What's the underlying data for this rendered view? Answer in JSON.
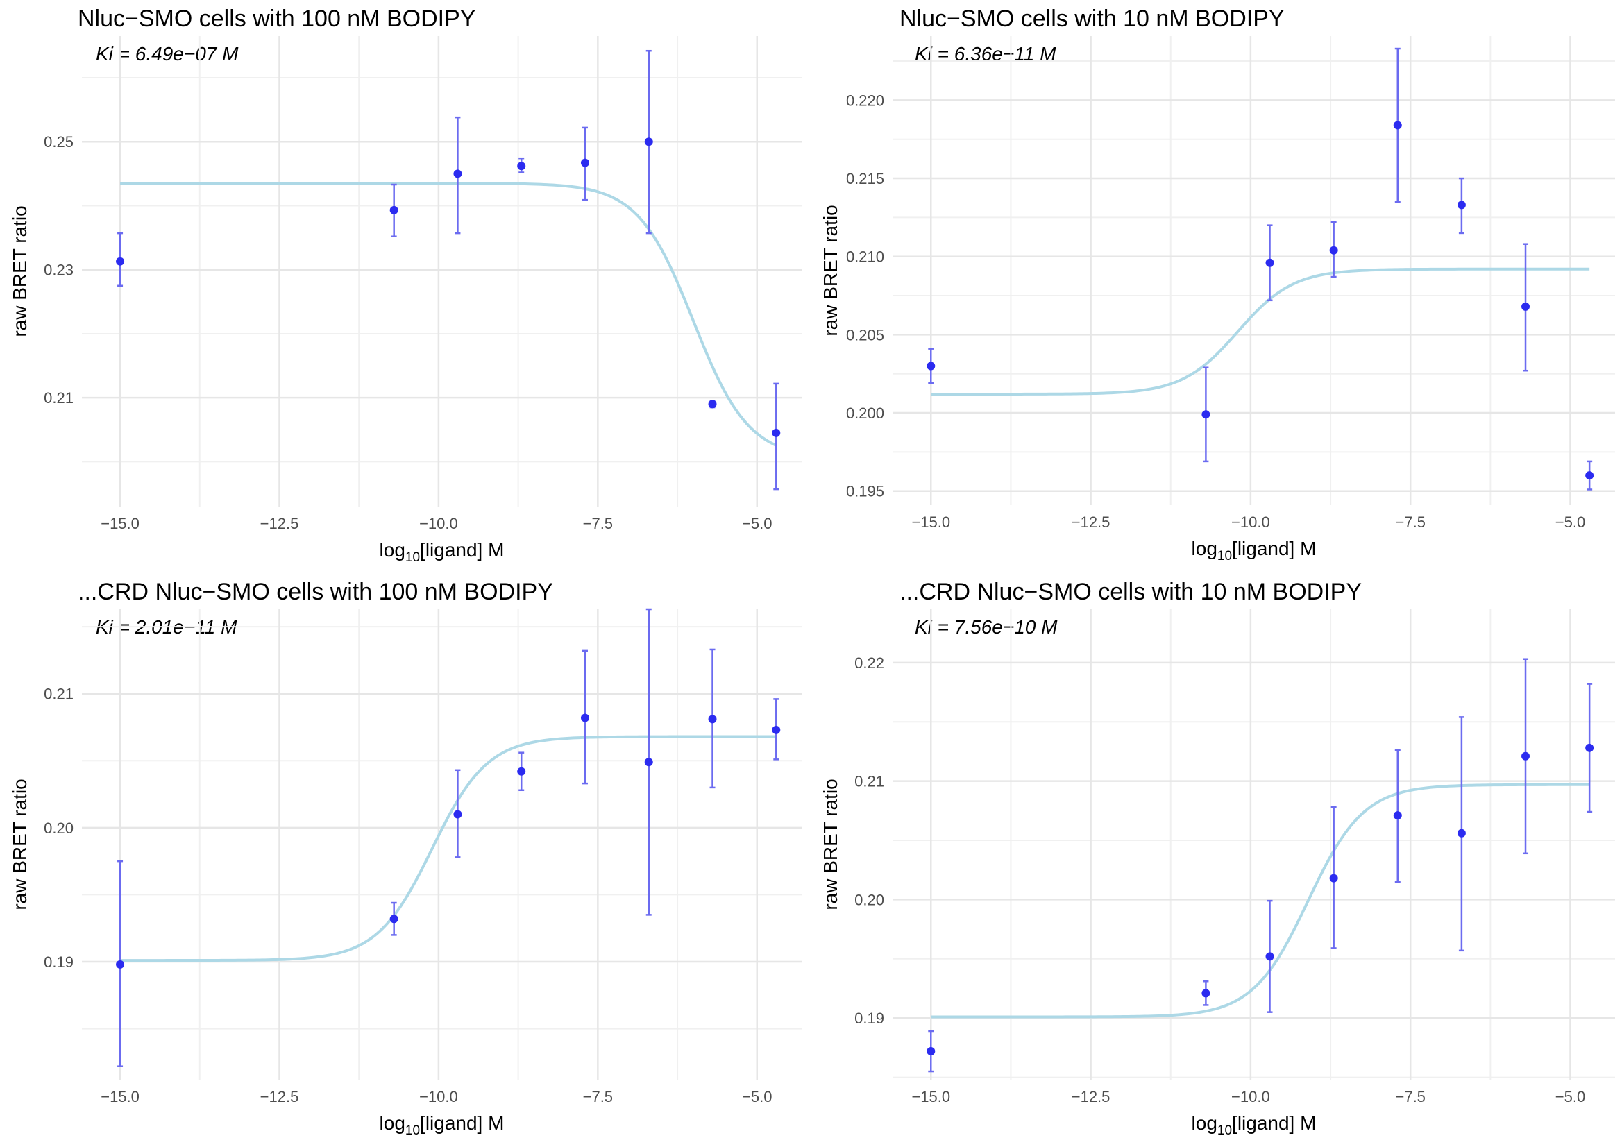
{
  "chart_data": [
    {
      "type": "scatter",
      "title": "Nluc−SMO cells with 100 nM BODIPY",
      "annotation": "Ki = 6.49e−07 M",
      "xlabel_prefix": "log",
      "xlabel_sub": "10",
      "xlabel_suffix": "[ligand] M",
      "ylabel": "raw BRET ratio",
      "xlim": [
        -15.6,
        -4.3
      ],
      "ylim": [
        0.193,
        0.2665
      ],
      "xticks": [
        -15.0,
        -12.5,
        -10.0,
        -7.5,
        -5.0
      ],
      "xtick_labels": [
        "−15.0",
        "−12.5",
        "−10.0",
        "−7.5",
        "−5.0"
      ],
      "yticks": [
        0.21,
        0.23,
        0.25
      ],
      "ytick_labels": [
        "0.21",
        "0.23",
        "0.25"
      ],
      "grid": true,
      "series": [
        {
          "x": [
            -15.0,
            -10.7,
            -9.7,
            -8.7,
            -7.7,
            -6.7,
            -5.7,
            -4.7
          ],
          "y": [
            0.2313,
            0.2393,
            0.245,
            0.2462,
            0.2467,
            0.25,
            0.209,
            0.2045
          ],
          "err_low": [
            0.2275,
            0.2352,
            0.2357,
            0.2452,
            0.2409,
            0.2357,
            0.2085,
            0.1957
          ],
          "err_high": [
            0.2357,
            0.2433,
            0.2538,
            0.2474,
            0.2522,
            0.2642,
            0.2095,
            0.2122
          ],
          "color": "#2b2bf0"
        }
      ],
      "fit": {
        "bottom": 0.2005,
        "top": 0.2435,
        "logEC50": -6.0,
        "hill": -1.0,
        "x_range": [
          -15.0,
          -4.7
        ],
        "color": "#add8e6"
      }
    },
    {
      "type": "scatter",
      "title": "Nluc−SMO cells with 10 nM BODIPY",
      "annotation": "Ki = 6.36e−11 M",
      "xlabel_prefix": "log",
      "xlabel_sub": "10",
      "xlabel_suffix": "[ligand] M",
      "ylabel": "raw BRET ratio",
      "xlim": [
        -15.6,
        -4.3
      ],
      "ylim": [
        0.1941,
        0.2241
      ],
      "xticks": [
        -15.0,
        -12.5,
        -10.0,
        -7.5,
        -5.0
      ],
      "xtick_labels": [
        "−15.0",
        "−12.5",
        "−10.0",
        "−7.5",
        "−5.0"
      ],
      "yticks": [
        0.195,
        0.2,
        0.205,
        0.21,
        0.215,
        0.22
      ],
      "ytick_labels": [
        "0.195",
        "0.200",
        "0.205",
        "0.210",
        "0.215",
        "0.220"
      ],
      "grid": true,
      "series": [
        {
          "x": [
            -15.0,
            -10.7,
            -9.7,
            -8.7,
            -7.7,
            -6.7,
            -5.7,
            -4.7
          ],
          "y": [
            0.203,
            0.1999,
            0.2096,
            0.2104,
            0.2184,
            0.2133,
            0.2068,
            0.196
          ],
          "err_low": [
            0.2019,
            0.1969,
            0.2072,
            0.2087,
            0.2135,
            0.2115,
            0.2027,
            0.1951
          ],
          "err_high": [
            0.2041,
            0.2029,
            0.212,
            0.2122,
            0.2233,
            0.215,
            0.2108,
            0.1969
          ],
          "color": "#2b2bf0"
        }
      ],
      "fit": {
        "bottom": 0.2012,
        "top": 0.2092,
        "logEC50": -10.2,
        "hill": 1.0,
        "x_range": [
          -15.0,
          -4.7
        ],
        "color": "#add8e6"
      }
    },
    {
      "type": "scatter",
      "title": "...CRD Nluc−SMO cells with 100 nM BODIPY",
      "annotation": "Ki = 2.01e−11 M",
      "xlabel_prefix": "log",
      "xlabel_sub": "10",
      "xlabel_suffix": "[ligand] M",
      "ylabel": "raw BRET ratio",
      "xlim": [
        -15.6,
        -4.3
      ],
      "ylim": [
        0.1812,
        0.2163
      ],
      "xticks": [
        -15.0,
        -12.5,
        -10.0,
        -7.5,
        -5.0
      ],
      "xtick_labels": [
        "−15.0",
        "−12.5",
        "−10.0",
        "−7.5",
        "−5.0"
      ],
      "yticks": [
        0.19,
        0.2,
        0.21
      ],
      "ytick_labels": [
        "0.19",
        "0.20",
        "0.21"
      ],
      "grid": true,
      "series": [
        {
          "x": [
            -15.0,
            -10.7,
            -9.7,
            -8.7,
            -7.7,
            -6.7,
            -5.7,
            -4.7
          ],
          "y": [
            0.1898,
            0.1932,
            0.201,
            0.2042,
            0.2082,
            0.2049,
            0.2081,
            0.2073
          ],
          "err_low": [
            0.1822,
            0.192,
            0.1978,
            0.2028,
            0.2033,
            0.1935,
            0.203,
            0.2051
          ],
          "err_high": [
            0.1975,
            0.1944,
            0.2043,
            0.2056,
            0.2132,
            0.2163,
            0.2133,
            0.2096
          ],
          "color": "#2b2bf0"
        }
      ],
      "fit": {
        "bottom": 0.1901,
        "top": 0.2068,
        "logEC50": -10.1,
        "hill": 1.0,
        "x_range": [
          -15.0,
          -4.7
        ],
        "color": "#add8e6"
      }
    },
    {
      "type": "scatter",
      "title": "...CRD Nluc−SMO cells with 10 nM BODIPY",
      "annotation": "Ki = 7.56e−10 M",
      "xlabel_prefix": "log",
      "xlabel_sub": "10",
      "xlabel_suffix": "[ligand] M",
      "ylabel": "raw BRET ratio",
      "xlim": [
        -15.6,
        -4.3
      ],
      "ylim": [
        0.1848,
        0.2245
      ],
      "xticks": [
        -15.0,
        -12.5,
        -10.0,
        -7.5,
        -5.0
      ],
      "xtick_labels": [
        "−15.0",
        "−12.5",
        "−10.0",
        "−7.5",
        "−5.0"
      ],
      "yticks": [
        0.19,
        0.2,
        0.21,
        0.22
      ],
      "ytick_labels": [
        "0.19",
        "0.20",
        "0.21",
        "0.22"
      ],
      "grid": true,
      "series": [
        {
          "x": [
            -15.0,
            -10.7,
            -9.7,
            -8.7,
            -7.7,
            -6.7,
            -5.7,
            -4.7
          ],
          "y": [
            0.1872,
            0.1921,
            0.1952,
            0.2018,
            0.2071,
            0.2056,
            0.2121,
            0.2128
          ],
          "err_low": [
            0.1855,
            0.1911,
            0.1905,
            0.1959,
            0.2015,
            0.1957,
            0.2039,
            0.2074
          ],
          "err_high": [
            0.1889,
            0.1931,
            0.1999,
            0.2078,
            0.2126,
            0.2154,
            0.2203,
            0.2182
          ],
          "color": "#2b2bf0"
        }
      ],
      "fit": {
        "bottom": 0.1901,
        "top": 0.2097,
        "logEC50": -9.1,
        "hill": 1.0,
        "x_range": [
          -15.0,
          -4.7
        ],
        "color": "#add8e6"
      }
    }
  ]
}
